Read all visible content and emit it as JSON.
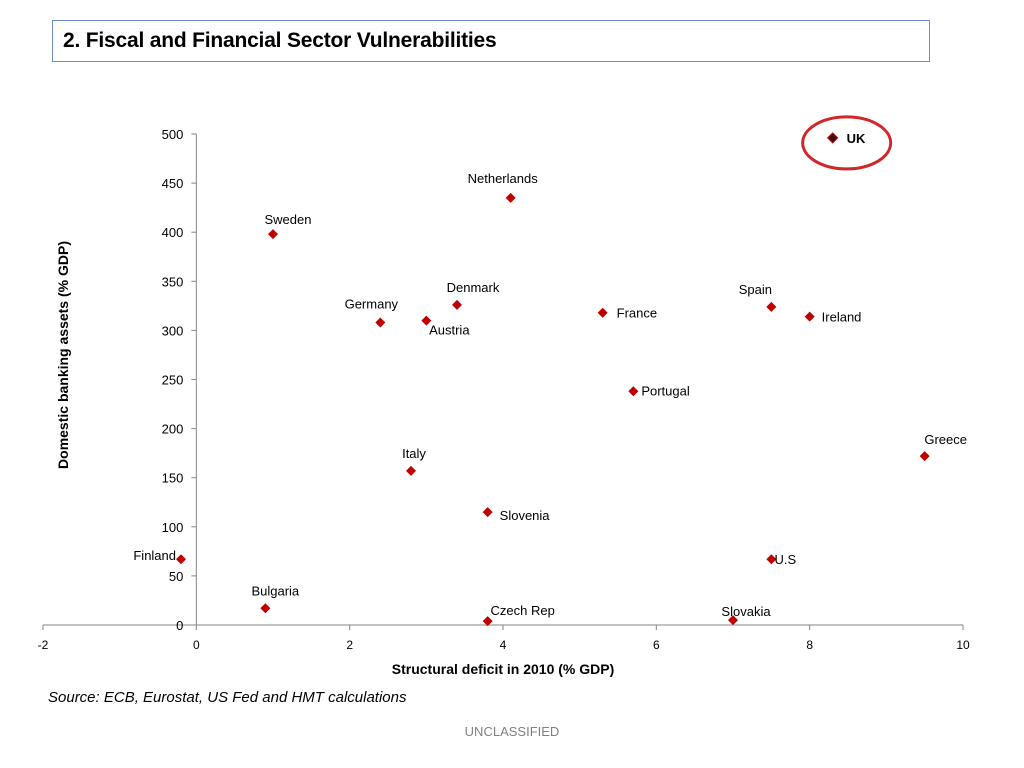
{
  "slide": {
    "title": "2. Fiscal and Financial Sector Vulnerabilities",
    "source": "Source: ECB, Eurostat, US Fed and HMT calculations",
    "classification": "UNCLASSIFIED"
  },
  "colors": {
    "marker": "#c00000",
    "highlight_ring": "#d0272b",
    "highlight_marker": "#3b1010",
    "title_border": "#6e8cc8"
  },
  "chart_data": {
    "type": "scatter",
    "xlabel": "Structural deficit in 2010 (% GDP)",
    "ylabel": "Domestic banking assets (% GDP)",
    "xlim": [
      -2,
      10
    ],
    "ylim": [
      0,
      500
    ],
    "x_ticks": [
      -2,
      0,
      2,
      4,
      6,
      8,
      10
    ],
    "y_ticks": [
      0,
      50,
      100,
      150,
      200,
      250,
      300,
      350,
      400,
      450,
      500
    ],
    "grid": false,
    "legend": "none",
    "highlight": "UK",
    "points": [
      {
        "label": "UK",
        "x": 8.3,
        "y": 496
      },
      {
        "label": "Netherlands",
        "x": 4.1,
        "y": 435
      },
      {
        "label": "Sweden",
        "x": 1.0,
        "y": 398
      },
      {
        "label": "Denmark",
        "x": 3.4,
        "y": 326
      },
      {
        "label": "Spain",
        "x": 7.5,
        "y": 324
      },
      {
        "label": "France",
        "x": 5.3,
        "y": 318
      },
      {
        "label": "Ireland",
        "x": 8.0,
        "y": 314
      },
      {
        "label": "Germany",
        "x": 2.4,
        "y": 308
      },
      {
        "label": "Austria",
        "x": 3.0,
        "y": 310
      },
      {
        "label": "Portugal",
        "x": 5.7,
        "y": 238
      },
      {
        "label": "Greece",
        "x": 9.5,
        "y": 172
      },
      {
        "label": "Italy",
        "x": 2.8,
        "y": 157
      },
      {
        "label": "Slovenia",
        "x": 3.8,
        "y": 115
      },
      {
        "label": "Finland",
        "x": -0.2,
        "y": 67
      },
      {
        "label": "U.S",
        "x": 7.5,
        "y": 67
      },
      {
        "label": "Bulgaria",
        "x": 0.9,
        "y": 17
      },
      {
        "label": "Czech Rep",
        "x": 3.8,
        "y": 4
      },
      {
        "label": "Slovakia",
        "x": 7.0,
        "y": 5
      }
    ]
  }
}
